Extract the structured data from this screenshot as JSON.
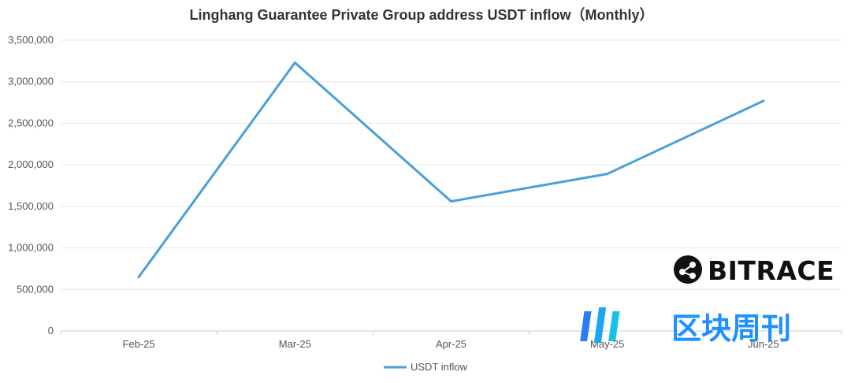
{
  "chart_data": {
    "type": "line",
    "title": "Linghang Guarantee Private Group address USDT inflow（Monthly）",
    "categories": [
      "Feb-25",
      "Mar-25",
      "Apr-25",
      "May-25",
      "Jun-25"
    ],
    "series": [
      {
        "name": "USDT inflow",
        "values": [
          650000,
          3230000,
          1560000,
          1890000,
          2770000
        ]
      }
    ],
    "ylim": [
      0,
      3500000
    ],
    "yticks": [
      0,
      500000,
      1000000,
      1500000,
      2000000,
      2500000,
      3000000,
      3500000
    ],
    "ytick_labels": [
      "0",
      "500,000",
      "1,000,000",
      "1,500,000",
      "2,000,000",
      "2,500,000",
      "3,000,000",
      "3,500,000"
    ],
    "grid": true,
    "legend": "bottom-center",
    "colors": {
      "series": "#4a9fd8",
      "grid": "#e6e6e6",
      "axis": "#cccccc"
    }
  },
  "watermarks": {
    "brand1": "BITRACE",
    "brand2": "区块周刊"
  }
}
